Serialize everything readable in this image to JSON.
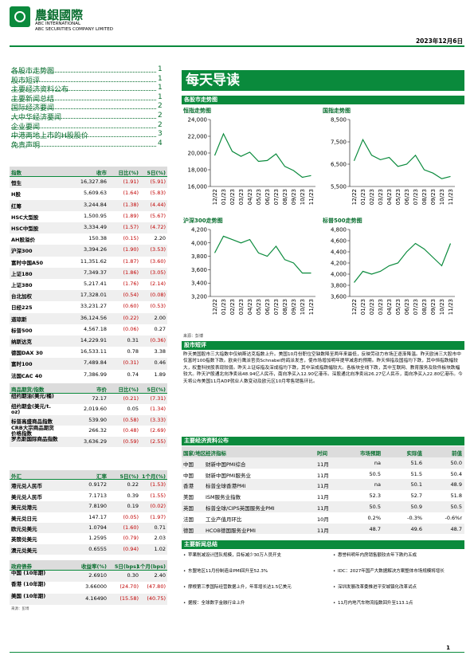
{
  "header": {
    "company_cn": "農銀國際",
    "company_en1": "ABC INTERNATIONAL",
    "company_en2": "ABC SECURITIES COMPANY LIMITED",
    "date": "2023年12月6日"
  },
  "toc": [
    {
      "title": "各股市走势图",
      "page": 1
    },
    {
      "title": "股市短评",
      "page": 1
    },
    {
      "title": "主要经济资料公布",
      "page": 1
    },
    {
      "title": "主要新闻总结",
      "page": 1
    },
    {
      "title": "国际经济要闻",
      "page": 2
    },
    {
      "title": "大中华经济要闻",
      "page": 2
    },
    {
      "title": "企业要闻",
      "page": 2
    },
    {
      "title": "中港两地上市的H股股价",
      "page": 3
    },
    {
      "title": "免责声明",
      "page": 4
    }
  ],
  "tables": [
    {
      "columns": [
        "指数",
        "收市",
        "日比(%)",
        "5日(%)"
      ],
      "rows": [
        [
          "恒生",
          "16,327.86",
          "(1.91)",
          "(5.91)"
        ],
        [
          "H股",
          "5,609.63",
          "(1.64)",
          "(5.83)"
        ],
        [
          "红筹",
          "3,244.84",
          "(1.38)",
          "(4.44)"
        ],
        [
          "HSC大型股",
          "1,500.95",
          "(1.89)",
          "(5.67)"
        ],
        [
          "HSC中型股",
          "3,334.49",
          "(1.57)",
          "(4.72)"
        ],
        [
          "AH股溢价",
          "150.38",
          "(0.15)",
          "2.20"
        ],
        [
          "沪深300",
          "3,394.26",
          "(1.90)",
          "(3.53)"
        ],
        [
          "富时中国A50",
          "11,351.62",
          "(1.87)",
          "(3.60)"
        ],
        [
          "上证180",
          "7,349.37",
          "(1.86)",
          "(3.05)"
        ],
        [
          "上证380",
          "5,217.41",
          "(1.76)",
          "(2.14)"
        ],
        [
          "台北加权",
          "17,328.01",
          "(0.54)",
          "(0.08)"
        ],
        [
          "日经225",
          "33,231.27",
          "(0.60)",
          "(0.53)"
        ],
        [
          "道琼斯",
          "36,124.56",
          "(0.22)",
          "2.00"
        ],
        [
          "标普500",
          "4,567.18",
          "(0.06)",
          "0.27"
        ],
        [
          "纳斯达克",
          "14,229.91",
          "0.31",
          "(0.36)"
        ],
        [
          "德国DAX 30",
          "16,533.11",
          "0.78",
          "3.38"
        ],
        [
          "富时100",
          "7,489.84",
          "(0.31)",
          "0.46"
        ],
        [
          "法国CAC 40",
          "7,386.99",
          "0.74",
          "1.89"
        ]
      ]
    },
    {
      "columns": [
        "商品期货/指数",
        "市价",
        "日比(%)",
        "5日(%)"
      ],
      "rows": [
        [
          "纽约期油(美元/桶)",
          "72.17",
          "(0.21)",
          "(7.31)"
        ],
        [
          "纽约期金(美元/t. oz)",
          "2,019.60",
          "0.05",
          "(1.34)"
        ],
        [
          "标普高盛商品指数",
          "539.90",
          "(0.58)",
          "(3.33)"
        ],
        [
          "CRB大宗商品期货价格指数",
          "266.32",
          "(0.48)",
          "(2.69)"
        ],
        [
          "罗杰斯国际商品指数",
          "3,636.29",
          "(0.59)",
          "(2.55)"
        ]
      ]
    },
    {
      "columns": [
        "外汇",
        "汇率",
        "5日(%)",
        "1个月(%)"
      ],
      "rows": [
        [
          "港元兑人民币",
          "0.9172",
          "0.22",
          "(1.53)"
        ],
        [
          "美元兑人民币",
          "7.1713",
          "0.39",
          "(1.55)"
        ],
        [
          "美元兑港元",
          "7.8190",
          "0.19",
          "(0.02)"
        ],
        [
          "美元兑日元",
          "147.17",
          "(0.05)",
          "(1.97)"
        ],
        [
          "欧元兑美元",
          "1.0794",
          "(1.60)",
          "0.71"
        ],
        [
          "英镑兑美元",
          "1.2595",
          "(0.79)",
          "2.03"
        ],
        [
          "澳元兑美元",
          "0.6555",
          "(0.94)",
          "1.02"
        ]
      ]
    },
    {
      "columns": [
        "政府债券",
        "收益率(%)",
        "5日(bps)",
        "1个月(bps)"
      ],
      "rows": [
        [
          "中国 (10年期)",
          "2.6910",
          "0.30",
          "2.40"
        ],
        [
          "香港 (10年期)",
          "3.66000",
          "(24.70)",
          "(47.80)"
        ],
        [
          "美国 (10年期)",
          "4.16490",
          "(15.58)",
          "(40.75)"
        ]
      ],
      "note": "来源：彭博"
    }
  ],
  "banner_title": "每天导读",
  "charts_section": "各股市走势图",
  "chart_data": [
    {
      "type": "line",
      "title": "恒指走势图",
      "categories": [
        "12/22",
        "01/23",
        "02/23",
        "03/23",
        "04/23",
        "05/23",
        "06/23",
        "07/23",
        "08/23",
        "09/23",
        "10/23",
        "11/23"
      ],
      "values": [
        19700,
        22300,
        20200,
        19600,
        20100,
        19000,
        19100,
        19900,
        18400,
        17900,
        17100,
        17300
      ],
      "color": "#0a8a3c",
      "ylim": [
        16000,
        24000
      ],
      "yticks": [
        {
          "value": 16000,
          "label": "16,000"
        },
        {
          "value": 18000,
          "label": "18,000"
        },
        {
          "value": 20000,
          "label": "20,000"
        },
        {
          "value": 22000,
          "label": "22,000"
        },
        {
          "value": 24000,
          "label": "24,000"
        }
      ]
    },
    {
      "type": "line",
      "title": "国指走势图",
      "categories": [
        "12/22",
        "01/23",
        "02/23",
        "03/23",
        "04/23",
        "05/23",
        "06/23",
        "07/23",
        "08/23",
        "09/23",
        "10/23",
        "11/23"
      ],
      "values": [
        6650,
        7600,
        6900,
        6700,
        6800,
        6400,
        6500,
        6900,
        6250,
        6100,
        5850,
        5950
      ],
      "color": "#0a8a3c",
      "ylim": [
        5500,
        8500
      ],
      "yticks": [
        {
          "value": 5500,
          "label": "5,500"
        },
        {
          "value": 6500,
          "label": "6,500"
        },
        {
          "value": 7500,
          "label": "7,500"
        },
        {
          "value": 8500,
          "label": "8,500"
        }
      ]
    },
    {
      "type": "line",
      "title": "沪深300走势图",
      "categories": [
        "12/22",
        "01/23",
        "02/23",
        "03/23",
        "04/23",
        "05/23",
        "06/23",
        "07/23",
        "08/23",
        "09/23",
        "10/23",
        "11/23"
      ],
      "values": [
        3850,
        4100,
        4050,
        4000,
        4050,
        3850,
        3800,
        3950,
        3750,
        3700,
        3550,
        3550
      ],
      "color": "#0a8a3c",
      "ylim": [
        3200,
        4200
      ],
      "yticks": [
        {
          "value": 3200,
          "label": "3,200"
        },
        {
          "value": 3400,
          "label": "3,400"
        },
        {
          "value": 3600,
          "label": "3,600"
        },
        {
          "value": 3800,
          "label": "3,800"
        },
        {
          "value": 4000,
          "label": "4,000"
        },
        {
          "value": 4200,
          "label": "4,200"
        }
      ]
    },
    {
      "type": "line",
      "title": "标普500走势图",
      "categories": [
        "12/22",
        "01/23",
        "02/23",
        "03/23",
        "04/23",
        "05/23",
        "06/23",
        "07/23",
        "08/23",
        "09/23",
        "10/23",
        "11/23"
      ],
      "values": [
        3850,
        4050,
        4000,
        4050,
        4150,
        4200,
        4400,
        4550,
        4450,
        4300,
        4150,
        4550
      ],
      "color": "#0a8a3c",
      "ylim": [
        3600,
        4800
      ],
      "yticks": [
        {
          "value": 3600,
          "label": "3,600"
        },
        {
          "value": 3800,
          "label": "3,800"
        },
        {
          "value": 4000,
          "label": "4,000"
        },
        {
          "value": 4200,
          "label": "4,200"
        },
        {
          "value": 4400,
          "label": "4,400"
        },
        {
          "value": 4600,
          "label": "4,600"
        },
        {
          "value": 4800,
          "label": "4,800"
        }
      ]
    }
  ],
  "source": "来源：彭博",
  "commentary": {
    "title": "股市短评",
    "text": "昨天美国股市三大指数中仅纳斯达克指数上升。美国10月份职位空缺数降至两年来最低，反映劳动力市场正逐渐降温。昨天欧洲三大股市中仅富时100指数下跌。欧央行鹰派官员Schnabel的鸽派发言，使市场增加明年提早减息的预期。昨天恒指及国指均下跌，其中恒指跌幅较大，权重科技股表现较弱。昨天上证综指及深成指均下跌，其中深成指跌幅较大。各板块全线下跌，其中互联网、教育服务及软件板块跌幅较大。昨天沪股通北向净卖出48.94亿人民币，南向净买入12.90亿港币。深股通北向净卖出26.27亿人民币，南向净买入22.80亿港币。今天将公布美国11月ADP就业人数变动及欧元区10月零售销售环比。"
  },
  "econ": {
    "title": "主要经济资料公布",
    "columns": [
      "国家/地区",
      "经济指标",
      "时间",
      "市场预期",
      "实际值",
      "前值"
    ],
    "rows": [
      [
        "中国",
        "财新中国PMI综合",
        "11月",
        "na",
        "51.6",
        "50.0"
      ],
      [
        "中国",
        "财新中国PMI服务业",
        "11月",
        "50.5",
        "51.5",
        "50.4"
      ],
      [
        "香港",
        "标普全球香港PMI",
        "11月",
        "na",
        "50.1",
        "48.9"
      ],
      [
        "美国",
        "ISM服务业指数",
        "11月",
        "52.3",
        "52.7",
        "51.8"
      ],
      [
        "英国",
        "标普全球/CIPS英国服务业PMI",
        "11月",
        "50.5",
        "50.9",
        "50.5"
      ],
      [
        "法国",
        "工业产值月环比",
        "10月",
        "0.2%",
        "-0.3%",
        "-0.6%r"
      ],
      [
        "德国",
        "HCOB德国服务业PMI",
        "11月",
        "48.7",
        "49.6",
        "48.7"
      ]
    ]
  },
  "news": {
    "title": "主要新闻总结",
    "left": [
      "苹果削减设计团队规模，目标减少30万人员开支",
      "东盟地区11月份制造业PMI回升至52.3%",
      "摩根第三季国际经营数据上升，年率增长达1.5亿美元",
      "据报：全球数字金融行业上升"
    ],
    "right": [
      "惠誉料明年内房销售额较去年下跌约五成",
      "IDC：2027年国产大数据解决方案整体市场规模将增长",
      "深圳发展改革委推进平安城镇化改革试点",
      "11月内地汽车物流指数回升至113.1点"
    ]
  },
  "footer": {
    "page": 1
  }
}
